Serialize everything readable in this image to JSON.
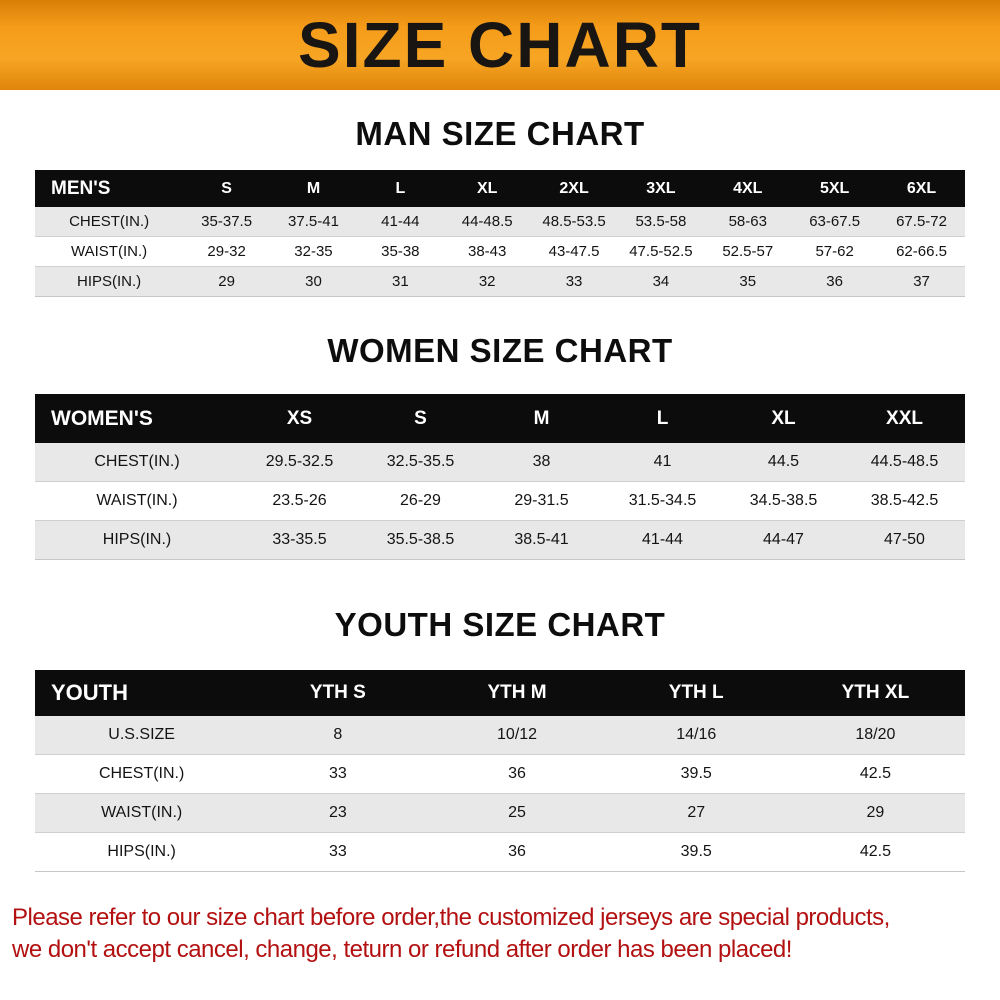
{
  "banner": {
    "title": "SIZE CHART"
  },
  "sections": [
    {
      "heading": "MAN SIZE CHART",
      "table": {
        "header": [
          "MEN'S",
          "S",
          "M",
          "L",
          "XL",
          "2XL",
          "3XL",
          "4XL",
          "5XL",
          "6XL"
        ],
        "rows": [
          [
            "CHEST(IN.)",
            "35-37.5",
            "37.5-41",
            "41-44",
            "44-48.5",
            "48.5-53.5",
            "53.5-58",
            "58-63",
            "63-67.5",
            "67.5-72"
          ],
          [
            "WAIST(IN.)",
            "29-32",
            "32-35",
            "35-38",
            "38-43",
            "43-47.5",
            "47.5-52.5",
            "52.5-57",
            "57-62",
            "62-66.5"
          ],
          [
            "HIPS(IN.)",
            "29",
            "30",
            "31",
            "32",
            "33",
            "34",
            "35",
            "36",
            "37"
          ]
        ]
      }
    },
    {
      "heading": "WOMEN SIZE CHART",
      "table": {
        "header": [
          "WOMEN'S",
          "XS",
          "S",
          "M",
          "L",
          "XL",
          "XXL"
        ],
        "rows": [
          [
            "CHEST(IN.)",
            "29.5-32.5",
            "32.5-35.5",
            "38",
            "41",
            "44.5",
            "44.5-48.5"
          ],
          [
            "WAIST(IN.)",
            "23.5-26",
            "26-29",
            "29-31.5",
            "31.5-34.5",
            "34.5-38.5",
            "38.5-42.5"
          ],
          [
            "HIPS(IN.)",
            "33-35.5",
            "35.5-38.5",
            "38.5-41",
            "41-44",
            "44-47",
            "47-50"
          ]
        ]
      }
    },
    {
      "heading": "YOUTH SIZE CHART",
      "table": {
        "header": [
          "YOUTH",
          "YTH S",
          "YTH M",
          "YTH L",
          "YTH XL"
        ],
        "rows": [
          [
            "U.S.SIZE",
            "8",
            "10/12",
            "14/16",
            "18/20"
          ],
          [
            "CHEST(IN.)",
            "33",
            "36",
            "39.5",
            "42.5"
          ],
          [
            "WAIST(IN.)",
            "23",
            "25",
            "27",
            "29"
          ],
          [
            "HIPS(IN.)",
            "33",
            "36",
            "39.5",
            "42.5"
          ]
        ]
      }
    }
  ],
  "footer_note": {
    "line1": "Please refer to our size chart before order,the customized jerseys are special products,",
    "line2": "we don't accept cancel, change, teturn or refund after order has been placed!"
  },
  "colors": {
    "banner_orange": "#f3a01e",
    "header_black": "#0c0c0c",
    "stripe_gray": "#e8e8e8",
    "note_red": "#b31111"
  }
}
